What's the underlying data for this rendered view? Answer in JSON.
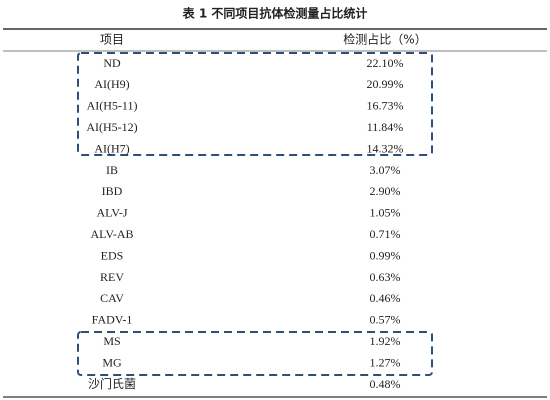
{
  "table": {
    "title": "表 1  不同项目抗体检测量占比统计",
    "header": [
      "项目",
      "检测占比（%）"
    ],
    "rows": [
      [
        "ND",
        "22.10%"
      ],
      [
        "AI(H9)",
        "20.99%"
      ],
      [
        "AI(H5-11)",
        "16.73%"
      ],
      [
        "AI(H5-12)",
        "11.84%"
      ],
      [
        "AI(H7)",
        "14.32%"
      ],
      [
        "IB",
        "3.07%"
      ],
      [
        "IBD",
        "2.90%"
      ],
      [
        "ALV-J",
        "1.05%"
      ],
      [
        "ALV-AB",
        "0.71%"
      ],
      [
        "EDS",
        "0.99%"
      ],
      [
        "REV",
        "0.63%"
      ],
      [
        "CAV",
        "0.46%"
      ],
      [
        "FADV-1",
        "0.57%"
      ],
      [
        "MS",
        "1.92%"
      ],
      [
        "MG",
        "1.27%"
      ],
      [
        "沙门氏菌",
        "0.48%"
      ]
    ]
  }
}
